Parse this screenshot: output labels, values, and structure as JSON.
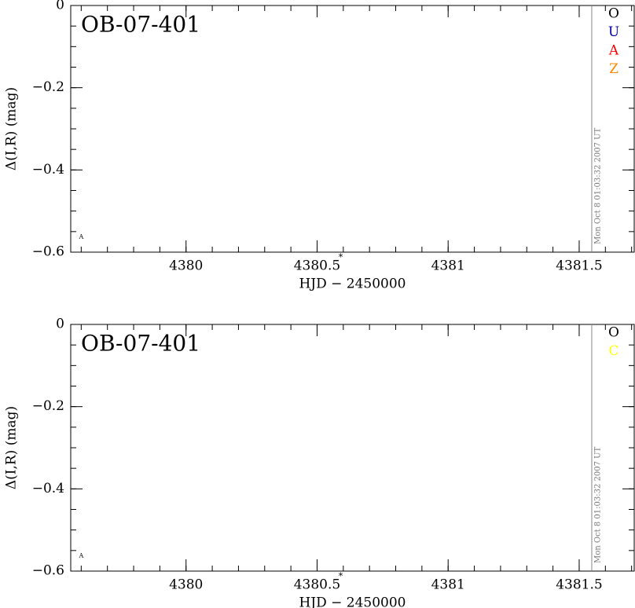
{
  "chart_data": [
    {
      "type": "scatter",
      "title": "OB-07-401",
      "ylabel": "Δ(I,R) (mag)",
      "xlabel": "HJD − 2450000",
      "xlim": [
        4379.56,
        4381.71
      ],
      "xticks": [
        4380,
        4380.5,
        4381,
        4381.5
      ],
      "xminor_step": 0.1,
      "ylim": [
        -0.6,
        0
      ],
      "yticks": [
        0,
        {
          "value": -0.2,
          "label": "−0.2"
        },
        {
          "value": -0.4,
          "label": "−0.4"
        },
        {
          "value": -0.6,
          "label": "−0.6"
        }
      ],
      "yminor_step": 0.05,
      "y_inverted": true,
      "series": [
        {
          "name": "O",
          "color": "#000000",
          "values": []
        },
        {
          "name": "U",
          "color": "#0000aa",
          "values": []
        },
        {
          "name": "A",
          "color": "#ff0000",
          "values": []
        },
        {
          "name": "Z",
          "color": "#ff8800",
          "values": []
        }
      ],
      "annotations": [
        {
          "text": "A",
          "x": 4379.6,
          "y": -0.564
        }
      ],
      "star": {
        "text": "*",
        "x": 4380.59
      },
      "now_line": {
        "x": 4381.548,
        "text": "Mon Oct  8 01:03:32 2007 UT"
      }
    },
    {
      "type": "scatter",
      "title": "OB-07-401",
      "ylabel": "Δ(I,R) (mag)",
      "xlabel": "HJD − 2450000",
      "xlim": [
        4379.56,
        4381.71
      ],
      "xticks": [
        4380,
        4380.5,
        4381,
        4381.5
      ],
      "xminor_step": 0.1,
      "ylim": [
        -0.6,
        0
      ],
      "yticks": [
        0,
        {
          "value": -0.2,
          "label": "−0.2"
        },
        {
          "value": -0.4,
          "label": "−0.4"
        },
        {
          "value": -0.6,
          "label": "−0.6"
        }
      ],
      "yminor_step": 0.05,
      "y_inverted": true,
      "series": [
        {
          "name": "O",
          "color": "#000000",
          "values": []
        },
        {
          "name": "C",
          "color": "#ffff00",
          "values": []
        }
      ],
      "annotations": [
        {
          "text": "A",
          "x": 4379.6,
          "y": -0.564
        }
      ],
      "star": {
        "text": "*",
        "x": 4380.59
      },
      "now_line": {
        "x": 4381.548,
        "text": "Mon Oct  8 01:03:32 2007 UT"
      }
    }
  ]
}
